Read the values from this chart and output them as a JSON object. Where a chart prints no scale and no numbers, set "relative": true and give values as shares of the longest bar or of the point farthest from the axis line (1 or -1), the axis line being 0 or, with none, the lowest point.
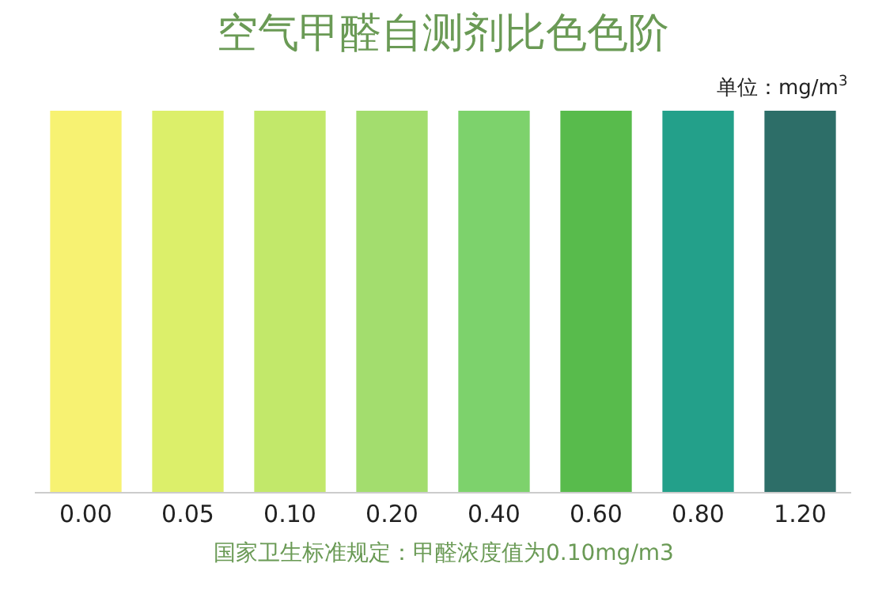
{
  "chart_data": {
    "type": "bar",
    "title": "空气甲醛自测剂比色色阶",
    "relative": true,
    "categories": [
      "0.00",
      "0.05",
      "0.10",
      "0.20",
      "0.40",
      "0.60",
      "0.80",
      "1.20"
    ],
    "values": [
      1,
      1,
      1,
      1,
      1,
      1,
      1,
      1
    ],
    "colors": [
      "#f7f272",
      "#dcef6a",
      "#c2e86a",
      "#a3dd6e",
      "#7dd26c",
      "#58bb4c",
      "#23a08a",
      "#2d6e68"
    ],
    "annotations": [
      "单位：mg/m$^{3}$",
      "国家卫生标准规定：甲醛浓度值为0.10mg/m3"
    ]
  }
}
